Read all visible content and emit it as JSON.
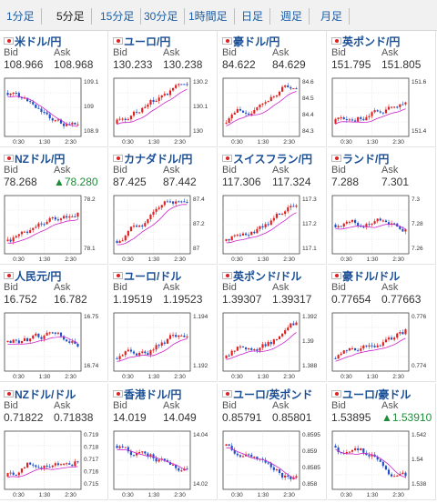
{
  "tabs": [
    "1分足",
    "5分足",
    "15分足",
    "30分足",
    "1時間足",
    "日足",
    "週足",
    "月足"
  ],
  "active_tab": "5分足",
  "labels": {
    "bid": "Bid",
    "ask": "Ask"
  },
  "colors": {
    "up": "#e02020",
    "down": "#2050c8",
    "ma": "#cc22cc",
    "link": "#1a4f96",
    "up_ask": "#1f8c3a"
  },
  "x_ticks": [
    "0:30",
    "1:30",
    "2:30"
  ],
  "pairs": [
    {
      "name": "米ドル/円",
      "bid": "108.966",
      "ask": "108.968",
      "ask_up": false,
      "y_ticks": [
        "109.1",
        "109",
        "108.9"
      ],
      "trend": "down",
      "flag_icon": "us-flag-icon"
    },
    {
      "name": "ユーロ/円",
      "bid": "130.233",
      "ask": "130.238",
      "ask_up": false,
      "y_ticks": [
        "130.2",
        "130.1",
        "130"
      ],
      "trend": "up",
      "flag_icon": "eu-flag-icon"
    },
    {
      "name": "豪ドル/円",
      "bid": "84.622",
      "ask": "84.629",
      "ask_up": false,
      "y_ticks": [
        "84.6",
        "84.5",
        "84.4",
        "84.3"
      ],
      "trend": "up",
      "flag_icon": "au-flag-icon"
    },
    {
      "name": "英ポンド/円",
      "bid": "151.795",
      "ask": "151.805",
      "ask_up": false,
      "y_ticks": [
        "151.6",
        "151.4"
      ],
      "trend": "up",
      "flag_icon": "gb-flag-icon"
    },
    {
      "name": "NZドル/円",
      "bid": "78.268",
      "ask": "▲78.280",
      "ask_up": true,
      "y_ticks": [
        "78.2",
        "78.1"
      ],
      "trend": "up",
      "flag_icon": "nz-flag-icon"
    },
    {
      "name": "カナダドル/円",
      "bid": "87.425",
      "ask": "87.442",
      "ask_up": false,
      "y_ticks": [
        "87.4",
        "87.2",
        "87"
      ],
      "trend": "up",
      "flag_icon": "ca-flag-icon"
    },
    {
      "name": "スイスフラン/円",
      "bid": "117.306",
      "ask": "117.324",
      "ask_up": false,
      "y_ticks": [
        "117.3",
        "117.2",
        "117.1"
      ],
      "trend": "up",
      "flag_icon": "ch-flag-icon"
    },
    {
      "name": "ランド/円",
      "bid": "7.288",
      "ask": "7.301",
      "ask_up": false,
      "y_ticks": [
        "7.3",
        "7.28",
        "7.26"
      ],
      "trend": "flat",
      "flag_icon": "za-flag-icon"
    },
    {
      "name": "人民元/円",
      "bid": "16.752",
      "ask": "16.782",
      "ask_up": false,
      "y_ticks": [
        "16.75",
        "16.74"
      ],
      "trend": "flat",
      "flag_icon": "cn-flag-icon"
    },
    {
      "name": "ユーロ/ドル",
      "bid": "1.19519",
      "ask": "1.19523",
      "ask_up": false,
      "y_ticks": [
        "1.194",
        "1.192"
      ],
      "trend": "up",
      "flag_icon": "eu-flag-icon"
    },
    {
      "name": "英ポンド/ドル",
      "bid": "1.39307",
      "ask": "1.39317",
      "ask_up": false,
      "y_ticks": [
        "1.392",
        "1.39",
        "1.388"
      ],
      "trend": "up",
      "flag_icon": "gb-flag-icon"
    },
    {
      "name": "豪ドル/ドル",
      "bid": "0.77654",
      "ask": "0.77663",
      "ask_up": false,
      "y_ticks": [
        "0.776",
        "0.774"
      ],
      "trend": "up",
      "flag_icon": "au-flag-icon"
    },
    {
      "name": "NZドル/ドル",
      "bid": "0.71822",
      "ask": "0.71838",
      "ask_up": false,
      "y_ticks": [
        "0.719",
        "0.718",
        "0.717",
        "0.716",
        "0.715"
      ],
      "trend": "up",
      "flag_icon": "nz-flag-icon"
    },
    {
      "name": "香港ドル/円",
      "bid": "14.019",
      "ask": "14.049",
      "ask_up": false,
      "y_ticks": [
        "14.04",
        "14.02"
      ],
      "trend": "down",
      "flag_icon": "hk-flag-icon"
    },
    {
      "name": "ユーロ/英ポンド",
      "bid": "0.85791",
      "ask": "0.85801",
      "ask_up": false,
      "y_ticks": [
        "0.8595",
        "0.859",
        "0.8585",
        "0.858"
      ],
      "trend": "down",
      "flag_icon": "eu-flag-icon"
    },
    {
      "name": "ユーロ/豪ドル",
      "bid": "1.53895",
      "ask": "▲1.53910",
      "ask_up": true,
      "y_ticks": [
        "1.542",
        "1.54",
        "1.538"
      ],
      "trend": "down",
      "flag_icon": "eu-flag-icon"
    }
  ]
}
